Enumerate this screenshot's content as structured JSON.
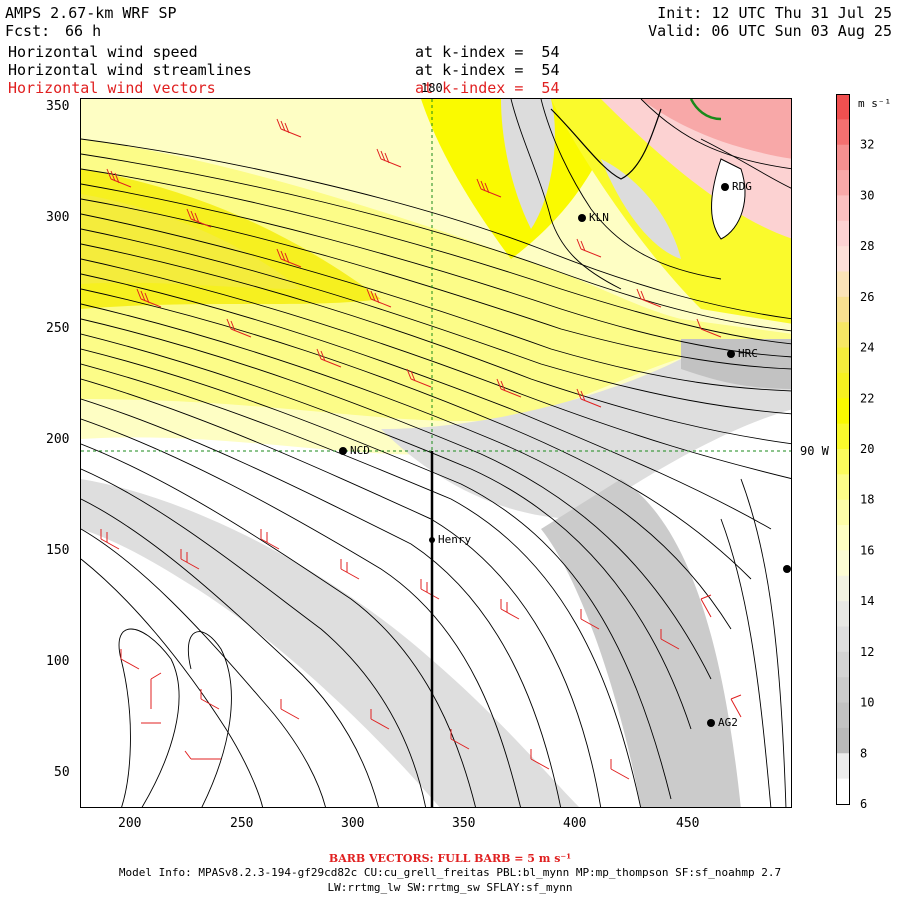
{
  "header": {
    "model": "AMPS 2.67-km WRF SP",
    "fcst_label": "Fcst:",
    "fcst_value": "66 h",
    "init": "Init: 12 UTC Thu 31 Jul 25",
    "valid": "Valid: 06 UTC Sun 03 Aug 25"
  },
  "fields": [
    {
      "name": "Horizontal wind speed",
      "level": "at k-index =  54",
      "color": "#000000"
    },
    {
      "name": "Horizontal wind streamlines",
      "level": "at k-index =  54",
      "color": "#000000"
    },
    {
      "name": "Horizontal wind vectors",
      "level": "at k-index =  54",
      "color": "#e02020"
    }
  ],
  "map": {
    "x_ticks": [
      "200",
      "250",
      "300",
      "350",
      "400",
      "450"
    ],
    "y_ticks": [
      "50",
      "100",
      "150",
      "200",
      "250",
      "300",
      "350"
    ],
    "meridian_label": "180",
    "parallel_label": "90 W",
    "stations": [
      {
        "name": "KLN"
      },
      {
        "name": "RDG"
      },
      {
        "name": "HRC"
      },
      {
        "name": "NCD"
      },
      {
        "name": "Henry"
      },
      {
        "name": "AG2"
      }
    ]
  },
  "colorbar": {
    "units": "m s⁻¹",
    "ticks": [
      "32",
      "30",
      "28",
      "26",
      "24",
      "22",
      "20",
      "18",
      "16",
      "14",
      "12",
      "10",
      "8",
      "6"
    ],
    "colors": {
      "33": "#f05050",
      "32": "#f47070",
      "31": "#f69090",
      "30": "#f8a8a8",
      "29": "#fbc0c0",
      "28": "#fcd2d2",
      "27": "#fde0d8",
      "26": "#fbe3b8",
      "25": "#f8e090",
      "24": "#f6e664",
      "23": "#f4ec3c",
      "22": "#f6f020",
      "21": "#fafa00",
      "20": "#fafa2c",
      "19": "#fbfb5c",
      "18": "#fcfc88",
      "17": "#fdfda8",
      "16": "#fefec4",
      "15": "#fcfcd4",
      "14": "#f2f2e2",
      "13": "#e8e8e4",
      "12": "#dedede",
      "11": "#d4d4d4",
      "10": "#cbcbcb",
      "9": "#c2c2c2",
      "8": "#b9b9b9",
      "7": "#ececec",
      "6": "#ffffff"
    }
  },
  "footer": {
    "barb_note": "BARB VECTORS:  FULL BARB = 5 m s⁻¹",
    "model_info_1": "Model Info: MPASv8.2.3-194-gf29cd82c CU:cu_grell_freitas PBL:bl_mynn MP:mp_thompson SF:sf_noahmp 2.7",
    "model_info_2": "LW:rrtmg_lw SW:rrtmg_sw SFLAY:sf_mynn"
  }
}
